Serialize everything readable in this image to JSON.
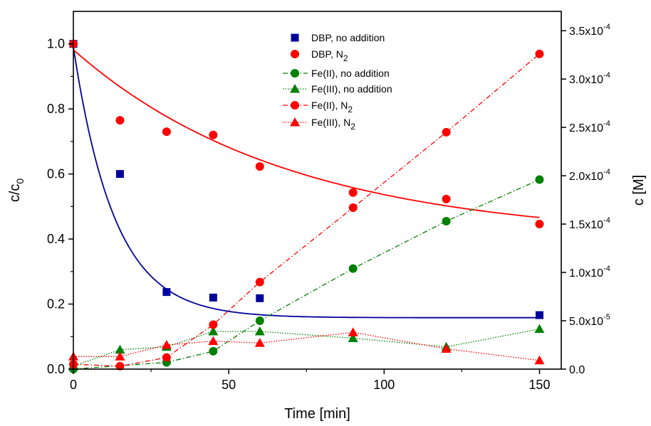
{
  "chart_data": {
    "type": "scatter",
    "xlabel": "Time [min]",
    "ylabel_left": {
      "main": "c/c",
      "sub": "0"
    },
    "ylabel_right": "c [M]",
    "xlim": [
      0,
      157
    ],
    "ylim_left": [
      0,
      1.1
    ],
    "ylim_right": [
      0,
      0.00037
    ],
    "x_ticks": [
      0,
      50,
      100,
      150
    ],
    "x_tick_labels": [
      "0",
      "50",
      "100",
      "150"
    ],
    "y_left_ticks": [
      0.0,
      0.2,
      0.4,
      0.6,
      0.8,
      1.0
    ],
    "y_left_tick_labels": [
      "0.0",
      "0.2",
      "0.4",
      "0.6",
      "0.8",
      "1.0"
    ],
    "y_right_ticks": [
      0,
      5e-05,
      0.0001,
      0.00015,
      0.0002,
      0.00025,
      0.0003,
      0.00035
    ],
    "y_right_tick_labels": [
      {
        "main": "0.0",
        "exp": ""
      },
      {
        "main": "5.0x10",
        "exp": "-5"
      },
      {
        "main": "1.0x10",
        "exp": "-4"
      },
      {
        "main": "1.5x10",
        "exp": "-4"
      },
      {
        "main": "2.0x10",
        "exp": "-4"
      },
      {
        "main": "2.5x10",
        "exp": "-4"
      },
      {
        "main": "3.0x10",
        "exp": "-4"
      },
      {
        "main": "3.5x10",
        "exp": "-4"
      }
    ],
    "grid": false,
    "legend_position": "top-center",
    "series": [
      {
        "name": "DBP, no addition",
        "name_sub": "",
        "axis": "left",
        "marker": "square",
        "color": "#00009C",
        "line": "none",
        "x": [
          0,
          15,
          30,
          45,
          60,
          150
        ],
        "y": [
          1.0,
          0.6,
          0.237,
          0.22,
          0.218,
          0.166
        ]
      },
      {
        "name": "DBP, N",
        "name_sub": "2",
        "axis": "left",
        "marker": "circle",
        "color": "#FF0000",
        "line": "none",
        "x": [
          0,
          15,
          30,
          45,
          60,
          90,
          120,
          150
        ],
        "y": [
          1.0,
          0.765,
          0.73,
          0.72,
          0.623,
          0.543,
          0.523,
          0.446
        ]
      },
      {
        "name": "Fe(II), no addition",
        "name_sub": "",
        "axis": "right",
        "marker": "circle",
        "color": "#008000",
        "line": "dashdot",
        "x": [
          0,
          30,
          45,
          60,
          90,
          120,
          150
        ],
        "y": [
          0,
          7e-06,
          1.85e-05,
          5e-05,
          0.000104,
          0.000153,
          0.000196
        ]
      },
      {
        "name": "Fe(III), no addition",
        "name_sub": "",
        "axis": "right",
        "marker": "triangle",
        "color": "#008000",
        "line": "dotted",
        "x": [
          0,
          15,
          30,
          45,
          60,
          90,
          120,
          150
        ],
        "y": [
          3e-06,
          2e-05,
          2.3e-05,
          3.9e-05,
          3.9e-05,
          3.2e-05,
          2.3e-05,
          4.15e-05
        ]
      },
      {
        "name": "Fe(II), N",
        "name_sub": "2",
        "axis": "right",
        "marker": "circle",
        "color": "#FF0000",
        "line": "dashdot",
        "x": [
          0,
          15,
          30,
          45,
          60,
          90,
          120,
          150
        ],
        "y": [
          5e-06,
          3e-06,
          1.2e-05,
          4.6e-05,
          9e-05,
          0.000167,
          0.000245,
          0.000326
        ]
      },
      {
        "name": "Fe(III), N",
        "name_sub": "2",
        "axis": "right",
        "marker": "triangle",
        "color": "#FF0000",
        "line": "dotted",
        "x": [
          0,
          15,
          30,
          45,
          60,
          90,
          120,
          150
        ],
        "y": [
          1.3e-05,
          1.3e-05,
          2.5e-05,
          2.9e-05,
          2.7e-05,
          3.8e-05,
          2.1e-05,
          9e-06
        ]
      }
    ],
    "fit_curves": [
      {
        "color": "#00009C",
        "axis": "left",
        "model": "exponential decay",
        "y0": 0.158,
        "a": 0.832,
        "k": 0.075
      },
      {
        "color": "#FF0000",
        "axis": "left",
        "model": "exponential decay",
        "y0": 0.4,
        "a": 0.582,
        "k": 0.0145
      }
    ]
  }
}
